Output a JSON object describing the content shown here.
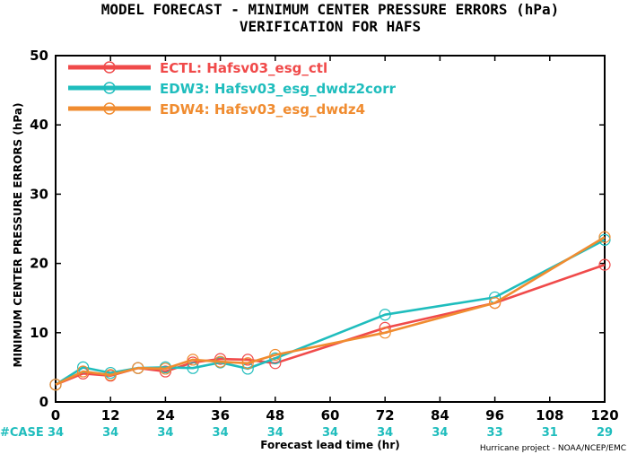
{
  "chart_data": {
    "type": "line",
    "title": "MODEL FORECAST - MINIMUM CENTER PRESSURE ERRORS (hPa)",
    "subtitle": "VERIFICATION FOR HAFS",
    "xlabel": "Forecast lead time (hr)",
    "ylabel": "MINIMUM CENTER PRESSURE ERRORS (hPa)",
    "xlim": [
      0,
      120
    ],
    "ylim": [
      0,
      50
    ],
    "xticks": [
      0,
      12,
      24,
      36,
      48,
      60,
      72,
      84,
      96,
      108,
      120
    ],
    "yticks": [
      0,
      10,
      20,
      30,
      40,
      50
    ],
    "grid": false,
    "legend_position": "top-left",
    "cases_label": "#CASE",
    "cases": [
      {
        "x": 0,
        "n": "34"
      },
      {
        "x": 12,
        "n": "34"
      },
      {
        "x": 24,
        "n": "34"
      },
      {
        "x": 36,
        "n": "34"
      },
      {
        "x": 48,
        "n": "34"
      },
      {
        "x": 60,
        "n": "34"
      },
      {
        "x": 72,
        "n": "34"
      },
      {
        "x": 84,
        "n": "34"
      },
      {
        "x": 96,
        "n": "33"
      },
      {
        "x": 108,
        "n": "31"
      },
      {
        "x": 120,
        "n": "29"
      }
    ],
    "cases_color": "#1fbdbd",
    "credit": "Hurricane project - NOAA/NCEP/EMC",
    "series": [
      {
        "name": "ECTL: Hafsv03_esg_ctl",
        "color": "#f04a4a",
        "x": [
          0,
          6,
          12,
          18,
          24,
          30,
          36,
          42,
          48,
          72,
          96,
          120
        ],
        "values": [
          2.5,
          4.1,
          3.8,
          4.9,
          4.4,
          5.7,
          6.2,
          6.1,
          5.6,
          10.7,
          14.3,
          19.8
        ]
      },
      {
        "name": "EDW3: Hafsv03_esg_dwdz2corr",
        "color": "#1fbdbd",
        "x": [
          0,
          6,
          12,
          18,
          24,
          30,
          36,
          42,
          48,
          72,
          96,
          120
        ],
        "values": [
          2.5,
          5.0,
          4.2,
          4.9,
          5.0,
          4.9,
          5.7,
          4.8,
          6.3,
          12.6,
          15.1,
          23.4
        ]
      },
      {
        "name": "EDW4: Hafsv03_esg_dwdz4",
        "color": "#f08c30",
        "x": [
          0,
          6,
          12,
          18,
          24,
          30,
          36,
          42,
          48,
          72,
          96,
          120
        ],
        "values": [
          2.5,
          4.4,
          3.9,
          4.9,
          4.8,
          6.1,
          5.8,
          5.6,
          6.8,
          10.0,
          14.3,
          23.8
        ]
      }
    ]
  }
}
